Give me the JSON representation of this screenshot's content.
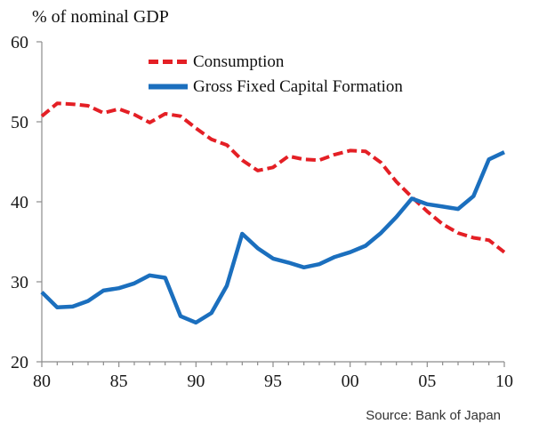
{
  "title": "% of nominal GDP",
  "source": "Source: Bank of Japan",
  "legend": [
    {
      "label": "Consumption",
      "color": "#e41f25",
      "style": "dashed"
    },
    {
      "label": "Gross Fixed Capital Formation",
      "color": "#1b6fbe",
      "style": "solid"
    }
  ],
  "axis_color": "#8c8c8c",
  "chart_data": {
    "type": "line",
    "title": "% of nominal GDP",
    "xlabel": "",
    "ylabel": "% of nominal GDP",
    "xlim": [
      1980,
      2010
    ],
    "ylim": [
      20,
      60
    ],
    "grid": false,
    "legend_position": "top-inside",
    "source": "Source: Bank of Japan",
    "years": [
      1980,
      1981,
      1982,
      1983,
      1984,
      1985,
      1986,
      1987,
      1988,
      1989,
      1990,
      1991,
      1992,
      1993,
      1994,
      1995,
      1996,
      1997,
      1998,
      1999,
      2000,
      2001,
      2002,
      2003,
      2004,
      2005,
      2006,
      2007,
      2008,
      2009,
      2010
    ],
    "x_ticks": [
      {
        "year": 1980,
        "label": "80"
      },
      {
        "year": 1985,
        "label": "85"
      },
      {
        "year": 1990,
        "label": "90"
      },
      {
        "year": 1995,
        "label": "95"
      },
      {
        "year": 2000,
        "label": "00"
      },
      {
        "year": 2005,
        "label": "05"
      },
      {
        "year": 2010,
        "label": "10"
      }
    ],
    "y_ticks": [
      20,
      30,
      40,
      50,
      60
    ],
    "series": [
      {
        "name": "Consumption",
        "color": "#e41f25",
        "dashed": true,
        "values": [
          50.7,
          52.3,
          52.2,
          52.0,
          51.1,
          51.6,
          50.9,
          49.9,
          51.0,
          50.7,
          49.2,
          47.8,
          47.1,
          45.2,
          43.9,
          44.3,
          45.7,
          45.3,
          45.2,
          45.9,
          46.4,
          46.3,
          44.9,
          42.5,
          40.6,
          38.8,
          37.2,
          36.1,
          35.5,
          35.2,
          33.7
        ]
      },
      {
        "name": "Gross Fixed Capital Formation",
        "color": "#1b6fbe",
        "dashed": false,
        "values": [
          28.7,
          26.8,
          26.9,
          27.6,
          28.9,
          29.2,
          29.8,
          30.8,
          30.5,
          25.7,
          24.9,
          26.1,
          29.5,
          36.0,
          34.2,
          32.9,
          32.4,
          31.8,
          32.2,
          33.1,
          33.7,
          34.5,
          36.1,
          38.1,
          40.4,
          39.7,
          39.4,
          39.1,
          40.7,
          45.3,
          46.2
        ]
      }
    ]
  }
}
